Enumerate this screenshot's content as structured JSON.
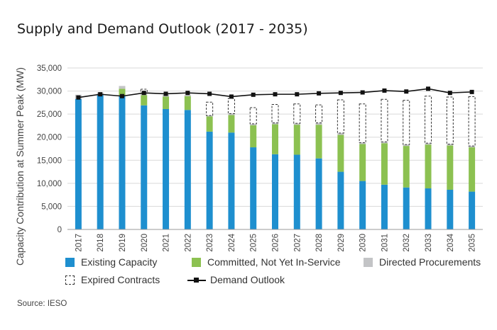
{
  "chart_data": {
    "type": "bar",
    "title": "Supply and Demand Outlook (2017 - 2035)",
    "ylabel": "Capacity Contribution at Summer Peak (MW)",
    "xlabel": "",
    "ylim": [
      0,
      35000
    ],
    "ytick_labels": [
      "0",
      "5,000",
      "10,000",
      "15,000",
      "20,000",
      "25,000",
      "30,000",
      "35,000"
    ],
    "categories": [
      "2017",
      "2018",
      "2019",
      "2020",
      "2021",
      "2022",
      "2023",
      "2024",
      "2025",
      "2026",
      "2027",
      "2028",
      "2029",
      "2030",
      "2031",
      "2032",
      "2033",
      "2034",
      "2035"
    ],
    "stacked": true,
    "grid": true,
    "legend_position": "bottom",
    "series": [
      {
        "name": "Existing Capacity",
        "kind": "bar",
        "color": "#1e8fcf",
        "values": [
          28300,
          29200,
          28900,
          26900,
          26100,
          25900,
          21200,
          21000,
          17800,
          16300,
          16200,
          15400,
          12500,
          10500,
          9700,
          9100,
          8900,
          8600,
          8200
        ]
      },
      {
        "name": "Committed, Not Yet In-Service",
        "kind": "bar",
        "color": "#8cc151",
        "values": [
          0,
          0,
          1600,
          2200,
          2700,
          3000,
          3300,
          3800,
          4800,
          6500,
          6500,
          7300,
          8000,
          8000,
          9000,
          9000,
          9500,
          9600,
          9600
        ]
      },
      {
        "name": "Directed Procurements",
        "kind": "bar",
        "color": "#c3c4c6",
        "values": [
          900,
          500,
          600,
          500,
          400,
          300,
          200,
          300,
          300,
          300,
          300,
          400,
          400,
          300,
          300,
          300,
          300,
          300,
          300
        ]
      },
      {
        "name": "Expired Contracts",
        "kind": "bar-outline",
        "color": "#333333",
        "values": [
          0,
          0,
          0,
          800,
          0,
          0,
          2900,
          3300,
          3500,
          4000,
          4200,
          3900,
          7200,
          8400,
          9200,
          9600,
          10200,
          10200,
          10700
        ]
      },
      {
        "name": "Demand Outlook",
        "kind": "line",
        "color": "#111111",
        "values": [
          28600,
          29300,
          28900,
          29600,
          29400,
          29600,
          29400,
          28800,
          29200,
          29300,
          29300,
          29500,
          29600,
          29700,
          30100,
          29900,
          30500,
          29600,
          29800
        ]
      }
    ]
  },
  "source": "Source: IESO"
}
